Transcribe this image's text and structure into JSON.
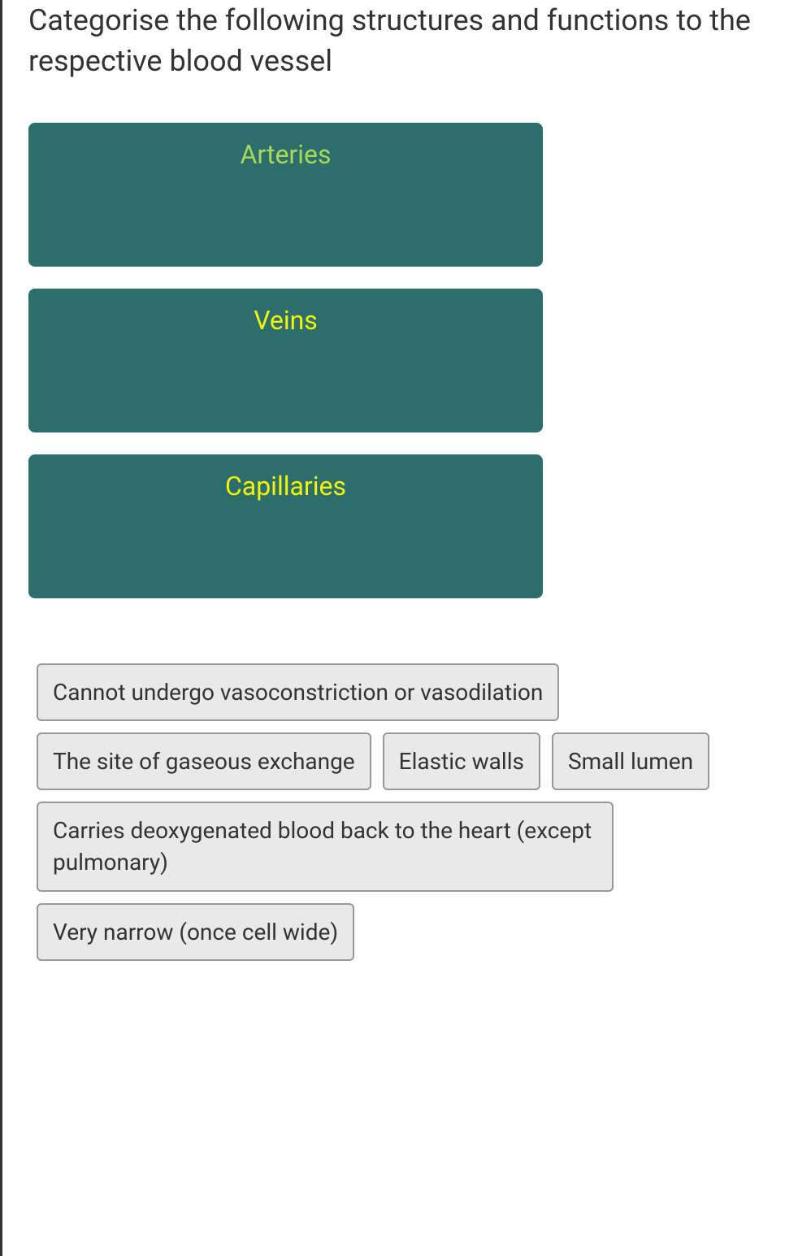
{
  "question": {
    "text": "Categorise the following structures and functions to the respective blood vessel"
  },
  "dropZones": [
    {
      "label": "Arteries",
      "labelColor": "green"
    },
    {
      "label": "Veins",
      "labelColor": "yellow"
    },
    {
      "label": "Capillaries",
      "labelColor": "yellow"
    }
  ],
  "draggableItems": [
    {
      "text": "Cannot undergo vasoconstriction or vasodilation"
    },
    {
      "text": "The site of gaseous exchange"
    },
    {
      "text": "Elastic walls"
    },
    {
      "text": "Small lumen"
    },
    {
      "text": "Carries deoxygenated blood back to the heart (except pulmonary)"
    },
    {
      "text": "Very narrow (once cell wide)"
    }
  ],
  "colors": {
    "dropZoneBackground": "#2b6e6c",
    "labelGreen": "#a8d85a",
    "labelYellow": "#f5f500",
    "itemBackground": "#e9e9e9",
    "itemBorder": "#999999",
    "textColor": "#333333"
  }
}
